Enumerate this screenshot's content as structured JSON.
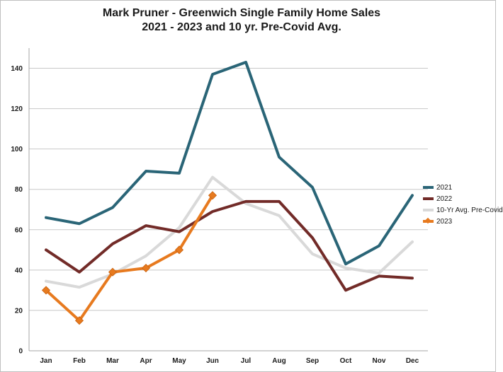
{
  "chart_data": {
    "type": "line",
    "title": "Mark Pruner - Greenwich Single Family Home Sales",
    "subtitle": "2021 - 2023 and 10 yr. Pre-Covid Avg.",
    "xlabel": "",
    "ylabel": "",
    "categories": [
      "Jan",
      "Feb",
      "Mar",
      "Apr",
      "May",
      "Jun",
      "Jul",
      "Aug",
      "Sep",
      "Oct",
      "Nov",
      "Dec"
    ],
    "ylim": [
      0,
      150
    ],
    "yticks": [
      0,
      20,
      40,
      60,
      80,
      100,
      120,
      140
    ],
    "grid": true,
    "legend_position": "right",
    "series": [
      {
        "name": "2021",
        "color": "#2a6577",
        "marker": "none",
        "values": [
          66,
          63,
          71,
          89,
          88,
          137,
          143,
          96,
          81,
          43,
          52,
          77
        ]
      },
      {
        "name": "2022",
        "color": "#722b28",
        "marker": "none",
        "values": [
          50,
          39,
          53,
          62,
          59,
          69,
          74,
          74,
          56,
          30,
          37,
          36
        ]
      },
      {
        "name": "10-Yr Avg. Pre-Covid",
        "color": "#d9d9d9",
        "marker": "none",
        "values": [
          34.5,
          31.5,
          38,
          47,
          61,
          86,
          73,
          67,
          48,
          41,
          38.5,
          54
        ]
      },
      {
        "name": "2023",
        "color": "#e77a1f",
        "marker": "diamond",
        "values": [
          30,
          15,
          39,
          41,
          50,
          77,
          null,
          null,
          null,
          null,
          null,
          null
        ]
      }
    ]
  }
}
